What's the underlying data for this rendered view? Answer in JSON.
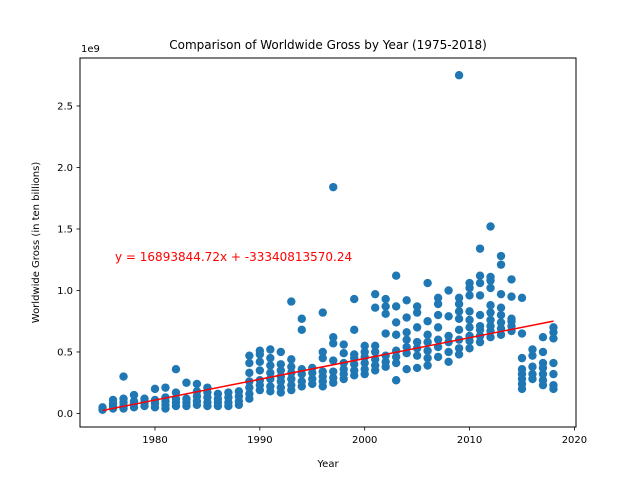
{
  "chart_data": {
    "type": "scatter",
    "title": "Comparison of Worldwide Gross by Year (1975-2018)",
    "xlabel": "Year",
    "ylabel": "Worldwide Gross (in ten billions)",
    "offset_label": "1e9",
    "xlim": [
      1972.85,
      2020.15
    ],
    "ylim": [
      -0.11,
      2.89
    ],
    "y_scale_multiplier": 1000000000,
    "x_ticks": [
      1980,
      1990,
      2000,
      2010,
      2020
    ],
    "x_tick_labels": [
      "1980",
      "1990",
      "2000",
      "2010",
      "2020"
    ],
    "y_ticks": [
      0.0,
      0.5,
      1.0,
      1.5,
      2.0,
      2.5
    ],
    "y_tick_labels": [
      "0.0",
      "0.5",
      "1.0",
      "1.5",
      "2.0",
      "2.5"
    ],
    "grid": false,
    "marker_color": "#1f77b4",
    "regression": {
      "equation_text": "y = 16893844.72x + -33340813570.24",
      "color": "#ff0000",
      "slope": 16893844.72,
      "intercept": -33340813570.24,
      "x_range": [
        1975,
        2018
      ]
    },
    "series": [
      {
        "color": "#1f77b4",
        "points": [
          [
            1975,
            0.03
          ],
          [
            1975,
            0.05
          ],
          [
            1976,
            0.04
          ],
          [
            1976,
            0.06
          ],
          [
            1976,
            0.08
          ],
          [
            1976,
            0.11
          ],
          [
            1977,
            0.04
          ],
          [
            1977,
            0.06
          ],
          [
            1977,
            0.09
          ],
          [
            1977,
            0.12
          ],
          [
            1977,
            0.3
          ],
          [
            1978,
            0.05
          ],
          [
            1978,
            0.08
          ],
          [
            1978,
            0.1
          ],
          [
            1978,
            0.15
          ],
          [
            1979,
            0.06
          ],
          [
            1979,
            0.09
          ],
          [
            1979,
            0.12
          ],
          [
            1980,
            0.05
          ],
          [
            1980,
            0.08
          ],
          [
            1980,
            0.11
          ],
          [
            1980,
            0.2
          ],
          [
            1981,
            0.04
          ],
          [
            1981,
            0.07
          ],
          [
            1981,
            0.1
          ],
          [
            1981,
            0.13
          ],
          [
            1981,
            0.21
          ],
          [
            1982,
            0.06
          ],
          [
            1982,
            0.09
          ],
          [
            1982,
            0.12
          ],
          [
            1982,
            0.17
          ],
          [
            1982,
            0.36
          ],
          [
            1983,
            0.06
          ],
          [
            1983,
            0.09
          ],
          [
            1983,
            0.12
          ],
          [
            1983,
            0.25
          ],
          [
            1984,
            0.07
          ],
          [
            1984,
            0.1
          ],
          [
            1984,
            0.14
          ],
          [
            1984,
            0.18
          ],
          [
            1984,
            0.24
          ],
          [
            1985,
            0.06
          ],
          [
            1985,
            0.09
          ],
          [
            1985,
            0.13
          ],
          [
            1985,
            0.17
          ],
          [
            1985,
            0.21
          ],
          [
            1986,
            0.06
          ],
          [
            1986,
            0.09
          ],
          [
            1986,
            0.12
          ],
          [
            1986,
            0.16
          ],
          [
            1987,
            0.06
          ],
          [
            1987,
            0.09
          ],
          [
            1987,
            0.13
          ],
          [
            1987,
            0.17
          ],
          [
            1988,
            0.07
          ],
          [
            1988,
            0.1
          ],
          [
            1988,
            0.14
          ],
          [
            1988,
            0.18
          ],
          [
            1989,
            0.12
          ],
          [
            1989,
            0.16
          ],
          [
            1989,
            0.21
          ],
          [
            1989,
            0.26
          ],
          [
            1989,
            0.33
          ],
          [
            1989,
            0.41
          ],
          [
            1989,
            0.47
          ],
          [
            1990,
            0.19
          ],
          [
            1990,
            0.23
          ],
          [
            1990,
            0.27
          ],
          [
            1990,
            0.35
          ],
          [
            1990,
            0.42
          ],
          [
            1990,
            0.48
          ],
          [
            1990,
            0.51
          ],
          [
            1991,
            0.18
          ],
          [
            1991,
            0.22
          ],
          [
            1991,
            0.28
          ],
          [
            1991,
            0.33
          ],
          [
            1991,
            0.39
          ],
          [
            1991,
            0.45
          ],
          [
            1991,
            0.52
          ],
          [
            1992,
            0.17
          ],
          [
            1992,
            0.21
          ],
          [
            1992,
            0.26
          ],
          [
            1992,
            0.3
          ],
          [
            1992,
            0.35
          ],
          [
            1992,
            0.4
          ],
          [
            1992,
            0.5
          ],
          [
            1993,
            0.19
          ],
          [
            1993,
            0.23
          ],
          [
            1993,
            0.28
          ],
          [
            1993,
            0.33
          ],
          [
            1993,
            0.38
          ],
          [
            1993,
            0.44
          ],
          [
            1993,
            0.91
          ],
          [
            1994,
            0.22
          ],
          [
            1994,
            0.26
          ],
          [
            1994,
            0.32
          ],
          [
            1994,
            0.36
          ],
          [
            1994,
            0.68
          ],
          [
            1994,
            0.77
          ],
          [
            1995,
            0.24
          ],
          [
            1995,
            0.28
          ],
          [
            1995,
            0.33
          ],
          [
            1995,
            0.37
          ],
          [
            1996,
            0.22
          ],
          [
            1996,
            0.26
          ],
          [
            1996,
            0.3
          ],
          [
            1996,
            0.34
          ],
          [
            1996,
            0.45
          ],
          [
            1996,
            0.5
          ],
          [
            1996,
            0.82
          ],
          [
            1997,
            0.25
          ],
          [
            1997,
            0.29
          ],
          [
            1997,
            0.34
          ],
          [
            1997,
            0.43
          ],
          [
            1997,
            0.57
          ],
          [
            1997,
            0.62
          ],
          [
            1997,
            1.84
          ],
          [
            1998,
            0.28
          ],
          [
            1998,
            0.32
          ],
          [
            1998,
            0.36
          ],
          [
            1998,
            0.41
          ],
          [
            1998,
            0.49
          ],
          [
            1998,
            0.56
          ],
          [
            1999,
            0.31
          ],
          [
            1999,
            0.35
          ],
          [
            1999,
            0.4
          ],
          [
            1999,
            0.45
          ],
          [
            1999,
            0.48
          ],
          [
            1999,
            0.68
          ],
          [
            1999,
            0.93
          ],
          [
            2000,
            0.32
          ],
          [
            2000,
            0.36
          ],
          [
            2000,
            0.41
          ],
          [
            2000,
            0.46
          ],
          [
            2000,
            0.5
          ],
          [
            2000,
            0.55
          ],
          [
            2001,
            0.35
          ],
          [
            2001,
            0.39
          ],
          [
            2001,
            0.44
          ],
          [
            2001,
            0.5
          ],
          [
            2001,
            0.55
          ],
          [
            2001,
            0.86
          ],
          [
            2001,
            0.97
          ],
          [
            2002,
            0.38
          ],
          [
            2002,
            0.42
          ],
          [
            2002,
            0.47
          ],
          [
            2002,
            0.65
          ],
          [
            2002,
            0.81
          ],
          [
            2002,
            0.87
          ],
          [
            2002,
            0.93
          ],
          [
            2003,
            0.27
          ],
          [
            2003,
            0.41
          ],
          [
            2003,
            0.46
          ],
          [
            2003,
            0.51
          ],
          [
            2003,
            0.64
          ],
          [
            2003,
            0.74
          ],
          [
            2003,
            0.87
          ],
          [
            2003,
            1.12
          ],
          [
            2004,
            0.36
          ],
          [
            2004,
            0.49
          ],
          [
            2004,
            0.54
          ],
          [
            2004,
            0.6
          ],
          [
            2004,
            0.66
          ],
          [
            2004,
            0.78
          ],
          [
            2004,
            0.92
          ],
          [
            2005,
            0.37
          ],
          [
            2005,
            0.47
          ],
          [
            2005,
            0.53
          ],
          [
            2005,
            0.58
          ],
          [
            2005,
            0.7
          ],
          [
            2005,
            0.82
          ],
          [
            2005,
            0.87
          ],
          [
            2006,
            0.39
          ],
          [
            2006,
            0.45
          ],
          [
            2006,
            0.51
          ],
          [
            2006,
            0.58
          ],
          [
            2006,
            0.64
          ],
          [
            2006,
            0.75
          ],
          [
            2006,
            1.06
          ],
          [
            2007,
            0.46
          ],
          [
            2007,
            0.54
          ],
          [
            2007,
            0.6
          ],
          [
            2007,
            0.7
          ],
          [
            2007,
            0.8
          ],
          [
            2007,
            0.89
          ],
          [
            2007,
            0.94
          ],
          [
            2008,
            0.42
          ],
          [
            2008,
            0.5
          ],
          [
            2008,
            0.58
          ],
          [
            2008,
            0.63
          ],
          [
            2008,
            0.79
          ],
          [
            2008,
            1.0
          ],
          [
            2009,
            0.48
          ],
          [
            2009,
            0.53
          ],
          [
            2009,
            0.6
          ],
          [
            2009,
            0.68
          ],
          [
            2009,
            0.77
          ],
          [
            2009,
            0.83
          ],
          [
            2009,
            0.89
          ],
          [
            2009,
            0.94
          ],
          [
            2009,
            2.75
          ],
          [
            2010,
            0.53
          ],
          [
            2010,
            0.59
          ],
          [
            2010,
            0.63
          ],
          [
            2010,
            0.7
          ],
          [
            2010,
            0.76
          ],
          [
            2010,
            0.83
          ],
          [
            2010,
            0.96
          ],
          [
            2010,
            1.02
          ],
          [
            2010,
            1.06
          ],
          [
            2011,
            0.58
          ],
          [
            2011,
            0.63
          ],
          [
            2011,
            0.68
          ],
          [
            2011,
            0.71
          ],
          [
            2011,
            0.8
          ],
          [
            2011,
            0.96
          ],
          [
            2011,
            1.06
          ],
          [
            2011,
            1.12
          ],
          [
            2011,
            1.34
          ],
          [
            2012,
            0.62
          ],
          [
            2012,
            0.67
          ],
          [
            2012,
            0.71
          ],
          [
            2012,
            0.76
          ],
          [
            2012,
            0.82
          ],
          [
            2012,
            0.88
          ],
          [
            2012,
            1.02
          ],
          [
            2012,
            1.08
          ],
          [
            2012,
            1.11
          ],
          [
            2012,
            1.52
          ],
          [
            2013,
            0.64
          ],
          [
            2013,
            0.69
          ],
          [
            2013,
            0.74
          ],
          [
            2013,
            0.8
          ],
          [
            2013,
            0.86
          ],
          [
            2013,
            0.97
          ],
          [
            2013,
            1.21
          ],
          [
            2013,
            1.28
          ],
          [
            2014,
            0.67
          ],
          [
            2014,
            0.71
          ],
          [
            2014,
            0.75
          ],
          [
            2014,
            0.77
          ],
          [
            2014,
            0.95
          ],
          [
            2014,
            1.09
          ],
          [
            2015,
            0.2
          ],
          [
            2015,
            0.24
          ],
          [
            2015,
            0.28
          ],
          [
            2015,
            0.32
          ],
          [
            2015,
            0.36
          ],
          [
            2015,
            0.45
          ],
          [
            2015,
            0.65
          ],
          [
            2015,
            0.94
          ],
          [
            2016,
            0.28
          ],
          [
            2016,
            0.32
          ],
          [
            2016,
            0.38
          ],
          [
            2016,
            0.47
          ],
          [
            2016,
            0.52
          ],
          [
            2017,
            0.23
          ],
          [
            2017,
            0.27
          ],
          [
            2017,
            0.32
          ],
          [
            2017,
            0.37
          ],
          [
            2017,
            0.41
          ],
          [
            2017,
            0.5
          ],
          [
            2017,
            0.62
          ],
          [
            2018,
            0.2
          ],
          [
            2018,
            0.23
          ],
          [
            2018,
            0.32
          ],
          [
            2018,
            0.41
          ],
          [
            2018,
            0.61
          ],
          [
            2018,
            0.66
          ],
          [
            2018,
            0.7
          ]
        ]
      }
    ]
  }
}
